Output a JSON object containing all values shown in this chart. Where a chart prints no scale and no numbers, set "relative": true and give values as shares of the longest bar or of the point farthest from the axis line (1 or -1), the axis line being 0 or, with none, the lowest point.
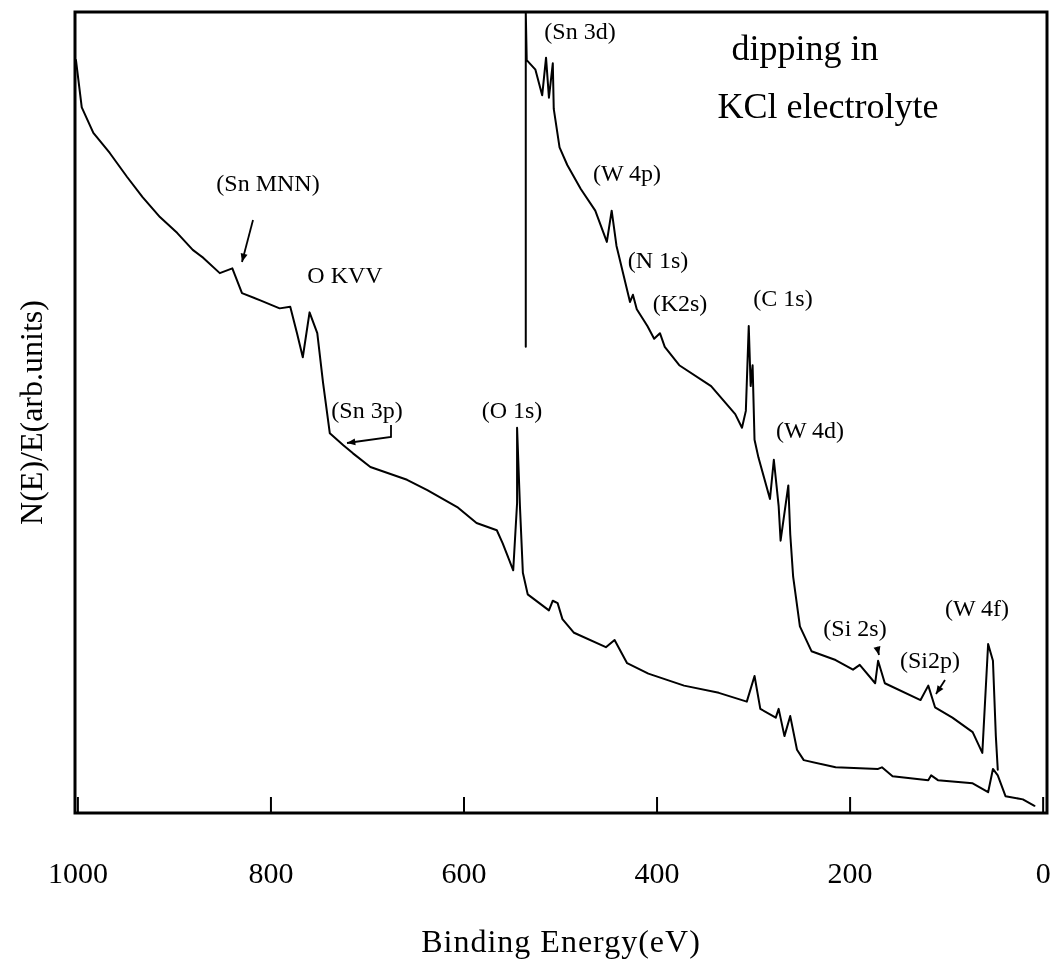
{
  "chart_data": {
    "type": "line",
    "xlabel": "Binding Energy(eV)",
    "ylabel": "N(E)/E(arb.units)",
    "relative": true,
    "xlim": [
      1003,
      -4
    ],
    "xticks": [
      1000,
      800,
      600,
      400,
      200,
      0
    ],
    "grid": false,
    "marker": "none",
    "line_style": "solid",
    "series": [
      {
        "color": "#000000",
        "x": [
          1002,
          996,
          984,
          967,
          949,
          933,
          915,
          897,
          881,
          870,
          853,
          840,
          830,
          811,
          791,
          780,
          773,
          767,
          760,
          752,
          746,
          739,
          725,
          715,
          697,
          659,
          638,
          607,
          587,
          566,
          560,
          549,
          545,
          545,
          542,
          539,
          534,
          512,
          508,
          503,
          498,
          486,
          453,
          444,
          431,
          409,
          372,
          336,
          307,
          299,
          293,
          277,
          274,
          268,
          262,
          255,
          248,
          215,
          171,
          167,
          156,
          119,
          116,
          109,
          73,
          57,
          52,
          47,
          39,
          21,
          9
        ],
        "values": [
          0.94,
          0.881,
          0.849,
          0.824,
          0.794,
          0.769,
          0.744,
          0.724,
          0.703,
          0.693,
          0.674,
          0.68,
          0.649,
          0.64,
          0.63,
          0.632,
          0.599,
          0.569,
          0.625,
          0.599,
          0.537,
          0.474,
          0.459,
          0.449,
          0.432,
          0.416,
          0.403,
          0.382,
          0.362,
          0.353,
          0.337,
          0.303,
          0.387,
          0.481,
          0.382,
          0.3,
          0.273,
          0.253,
          0.265,
          0.262,
          0.242,
          0.225,
          0.207,
          0.216,
          0.187,
          0.174,
          0.159,
          0.15,
          0.139,
          0.171,
          0.13,
          0.119,
          0.13,
          0.096,
          0.121,
          0.079,
          0.066,
          0.057,
          0.055,
          0.057,
          0.046,
          0.041,
          0.047,
          0.041,
          0.037,
          0.026,
          0.055,
          0.047,
          0.021,
          0.017,
          0.009
        ]
      },
      {
        "color": "#000000",
        "x": [
          536,
          536,
          535,
          526,
          519,
          515,
          512,
          508,
          507,
          501,
          493,
          479,
          464,
          452,
          447,
          442,
          435,
          428,
          425,
          421,
          410,
          403,
          397,
          392,
          377,
          344,
          319,
          312,
          308,
          305,
          303,
          301,
          299,
          295,
          283,
          279,
          274,
          272,
          264,
          262,
          259,
          252,
          240,
          215,
          197,
          190,
          174,
          171,
          164,
          127,
          119,
          112,
          94,
          73,
          63,
          57,
          52,
          49,
          47
        ],
        "values": [
          0.582,
          1.0,
          0.94,
          0.928,
          0.896,
          0.943,
          0.893,
          0.936,
          0.879,
          0.831,
          0.809,
          0.779,
          0.752,
          0.713,
          0.752,
          0.708,
          0.673,
          0.638,
          0.647,
          0.629,
          0.608,
          0.592,
          0.599,
          0.582,
          0.559,
          0.533,
          0.498,
          0.481,
          0.502,
          0.608,
          0.533,
          0.559,
          0.466,
          0.444,
          0.392,
          0.441,
          0.383,
          0.34,
          0.409,
          0.348,
          0.295,
          0.233,
          0.202,
          0.191,
          0.179,
          0.185,
          0.162,
          0.19,
          0.162,
          0.141,
          0.159,
          0.132,
          0.119,
          0.101,
          0.075,
          0.211,
          0.19,
          0.096,
          0.054
        ]
      }
    ],
    "annotations": [
      "(Sn MNN)",
      "O KVV",
      "(Sn 3p)",
      "(O 1s)",
      "(Sn 3d)",
      "(W 4p)",
      "(N 1s)",
      "(K2s)",
      "(C 1s)",
      "(W 4d)",
      "(Si 2s)",
      "(Si2p)",
      "(W 4f)",
      "dipping in",
      "KCl electrolyte"
    ]
  }
}
